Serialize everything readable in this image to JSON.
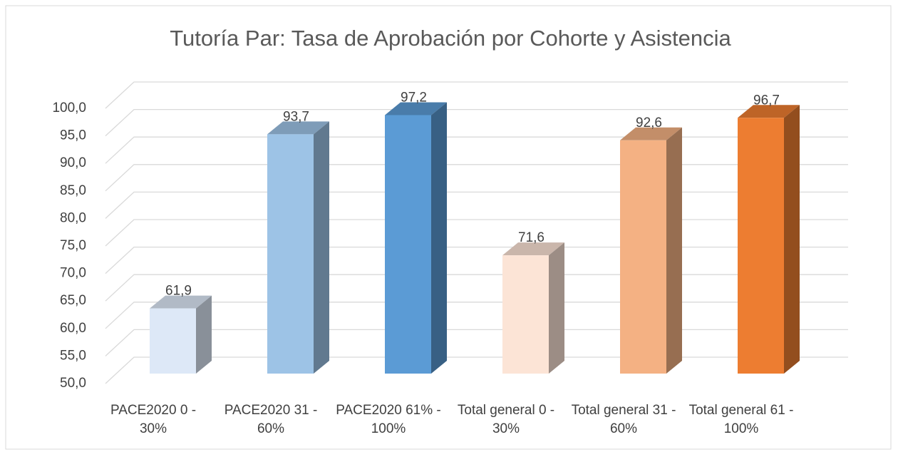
{
  "chart_data": {
    "type": "bar3d",
    "title": "Tutoría Par: Tasa de Aprobación por Cohorte y Asistencia",
    "categories": [
      "PACE2020 0 - 30%",
      "PACE2020 31 - 60%",
      "PACE2020 61% - 100%",
      "Total general 0 - 30%",
      "Total general 31 - 60%",
      "Total general 61 - 100%"
    ],
    "values": [
      61.9,
      93.7,
      97.2,
      71.6,
      92.6,
      96.7
    ],
    "value_labels": [
      "61,9",
      "93,7",
      "97,2",
      "71,6",
      "92,6",
      "96,7"
    ],
    "colors": [
      "#dde8f7",
      "#9dc3e6",
      "#5b9bd5",
      "#fce4d6",
      "#f4b183",
      "#ed7d31"
    ],
    "ylim": [
      50,
      100
    ],
    "yticks": [
      {
        "value": 50,
        "label": "50,0"
      },
      {
        "value": 55,
        "label": "55,0"
      },
      {
        "value": 60,
        "label": "60,0"
      },
      {
        "value": 65,
        "label": "65,0"
      },
      {
        "value": 70,
        "label": "70,0"
      },
      {
        "value": 75,
        "label": "75,0"
      },
      {
        "value": 80,
        "label": "80,0"
      },
      {
        "value": 85,
        "label": "85,0"
      },
      {
        "value": 90,
        "label": "90,0"
      },
      {
        "value": 95,
        "label": "95,0"
      },
      {
        "value": 100,
        "label": "100,0"
      }
    ],
    "grid": true
  }
}
